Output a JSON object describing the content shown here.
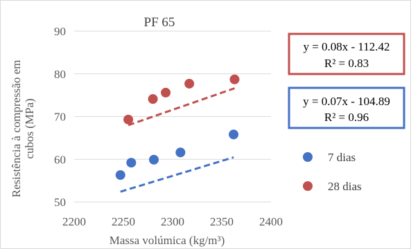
{
  "chart_data": {
    "type": "scatter",
    "title": "PF 65",
    "xlabel": "Massa volúmica (kg/m³)",
    "ylabel_lines": [
      "Resistência à compressão em",
      "cubos (MPa)"
    ],
    "xlim": [
      2200,
      2400
    ],
    "ylim": [
      50,
      90
    ],
    "xticks": [
      "2200",
      "2250",
      "2300",
      "2350",
      "2400"
    ],
    "yticks": [
      "50",
      "60",
      "70",
      "80",
      "90"
    ],
    "grid": "horizontal",
    "legend_position": "right",
    "series": [
      {
        "name": "7 dias",
        "color": "#4472c4",
        "points": [
          [
            2247,
            56.3
          ],
          [
            2258,
            59.2
          ],
          [
            2281,
            59.9
          ],
          [
            2308,
            61.6
          ],
          [
            2362,
            65.8
          ]
        ],
        "trendline": {
          "x_range": [
            2247,
            2362
          ],
          "slope": 0.07,
          "intercept": -104.89,
          "equation": "y = 0.07x - 104.89",
          "r2": "R² = 0.96"
        }
      },
      {
        "name": "28 dias",
        "color": "#c0504d",
        "points": [
          [
            2255,
            69.3
          ],
          [
            2280,
            74.1
          ],
          [
            2293,
            75.6
          ],
          [
            2317,
            77.7
          ],
          [
            2363,
            78.7
          ]
        ],
        "trendline": {
          "x_range": [
            2255,
            2363
          ],
          "slope": 0.08,
          "intercept": -112.42,
          "equation": "y = 0.08x - 112.42",
          "r2": "R² = 0.83"
        }
      }
    ]
  }
}
